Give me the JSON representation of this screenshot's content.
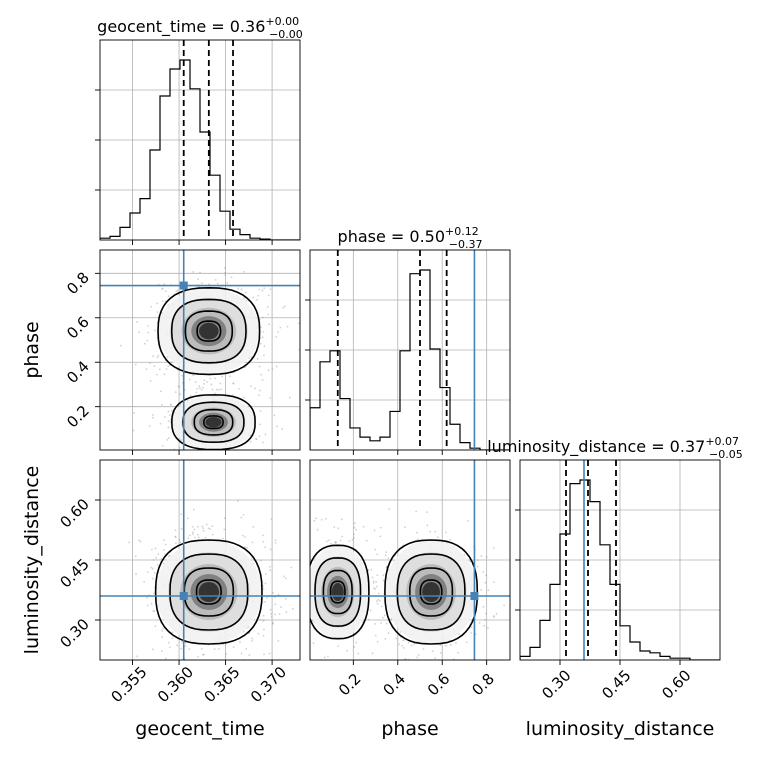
{
  "chart_data": {
    "type": "corner",
    "colors": {
      "truth": "#4682b4",
      "hist": "#000000",
      "samples": "#9a9a9a",
      "grid": "#b0b0b0"
    },
    "parameters": [
      {
        "name": "geocent_time",
        "xlabel": "geocent_time",
        "ylabel": "",
        "title": {
          "text": "geocent_time = 0.36",
          "plus": "+0.00",
          "minus": "−0.00"
        },
        "range": [
          0.3515,
          0.373
        ],
        "ticks": [
          0.355,
          0.36,
          0.365,
          0.37
        ],
        "tick_labels": [
          "0.355",
          "0.360",
          "0.365",
          "0.370"
        ],
        "quantiles": [
          0.3605,
          0.3632,
          0.3658
        ],
        "truth": null,
        "hist": {
          "edges_start": 0.3515,
          "edge_step": 0.001075,
          "heights": [
            0.01,
            0.02,
            0.07,
            0.15,
            0.23,
            0.5,
            0.8,
            0.95,
            1.0,
            0.84,
            0.6,
            0.36,
            0.16,
            0.06,
            0.03,
            0.01,
            0.005,
            0.0,
            0.0,
            0.0
          ]
        }
      },
      {
        "name": "phase",
        "xlabel": "phase",
        "ylabel": "phase",
        "title": {
          "text": "phase = 0.50",
          "plus": "+0.12",
          "minus": "−0.37"
        },
        "range": [
          0.005,
          0.905
        ],
        "ticks": [
          0.2,
          0.4,
          0.6,
          0.8
        ],
        "tick_labels": [
          "0.2",
          "0.4",
          "0.6",
          "0.8"
        ],
        "quantiles": [
          0.13,
          0.5,
          0.62
        ],
        "truth": 0.745,
        "hist": {
          "edges_start": 0.005,
          "edge_step": 0.045,
          "heights": [
            0.23,
            0.48,
            0.54,
            0.28,
            0.12,
            0.07,
            0.05,
            0.07,
            0.21,
            0.54,
            0.96,
            0.98,
            0.55,
            0.34,
            0.14,
            0.04,
            0.01,
            0.0,
            0.0,
            0.0
          ]
        }
      },
      {
        "name": "luminosity_distance",
        "xlabel": "luminosity_distance",
        "ylabel": "luminosity_distance",
        "title": {
          "text": "luminosity_distance = 0.37",
          "plus": "+0.07",
          "minus": "−0.05"
        },
        "range": [
          0.2,
          0.7
        ],
        "ticks": [
          0.3,
          0.45,
          0.6
        ],
        "tick_labels": [
          "0.30",
          "0.45",
          "0.60"
        ],
        "quantiles": [
          0.315,
          0.37,
          0.44
        ],
        "truth": 0.36,
        "hist": {
          "edges_start": 0.2,
          "edge_step": 0.025,
          "heights": [
            0.02,
            0.07,
            0.22,
            0.42,
            0.7,
            0.98,
            1.0,
            0.88,
            0.64,
            0.42,
            0.19,
            0.1,
            0.05,
            0.04,
            0.02,
            0.01,
            0.01,
            0.0,
            0.0,
            0.0
          ]
        }
      }
    ],
    "truths_2d": {
      "geocent_time": 0.3605,
      "phase": 0.745,
      "luminosity_distance": 0.36
    },
    "blobs_2d": [
      {
        "x": "geocent_time",
        "y": "phase",
        "modes": [
          {
            "cx": 0.3632,
            "cy": 0.54,
            "sx": 0.0021,
            "sy": 0.075,
            "w": 1.0
          },
          {
            "cx": 0.3637,
            "cy": 0.13,
            "sx": 0.002,
            "sy": 0.055,
            "w": 0.55
          }
        ]
      },
      {
        "x": "geocent_time",
        "y": "luminosity_distance",
        "modes": [
          {
            "cx": 0.3632,
            "cy": 0.37,
            "sx": 0.0022,
            "sy": 0.05,
            "w": 1.0
          }
        ]
      },
      {
        "x": "phase",
        "y": "luminosity_distance",
        "modes": [
          {
            "cx": 0.55,
            "cy": 0.37,
            "sx": 0.08,
            "sy": 0.05,
            "w": 1.0
          },
          {
            "cx": 0.13,
            "cy": 0.37,
            "sx": 0.06,
            "sy": 0.05,
            "w": 0.65
          }
        ]
      }
    ]
  }
}
